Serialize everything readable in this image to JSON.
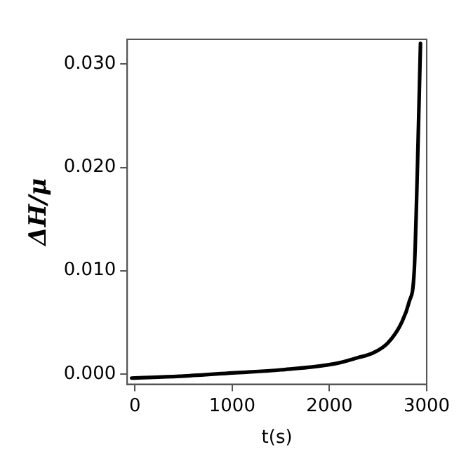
{
  "chart_data": {
    "type": "line",
    "xlabel": "t(s)",
    "ylabel": "ΔH/μ",
    "series": [
      {
        "color": "#000000",
        "x": [
          -35,
          500,
          1000,
          1500,
          2060,
          2300,
          2440,
          2600,
          2743,
          2820,
          2872,
          2905,
          2936
        ],
        "values": [
          -0.0004,
          -0.0002,
          0.0001,
          0.0004,
          0.001,
          0.0016,
          0.002,
          0.003,
          0.005,
          0.007,
          0.01,
          0.02,
          0.032
        ]
      }
    ],
    "xlim": [
      -80,
      3000
    ],
    "xticks": [
      0,
      1000,
      2000,
      3000
    ],
    "ylim": [
      -0.001,
      0.0324
    ],
    "yticks": [
      {
        "value": 0,
        "label": "0.000"
      },
      {
        "value": 0.01,
        "label": "0.010"
      },
      {
        "value": 0.02,
        "label": "0.020"
      },
      {
        "value": 0.03,
        "label": "0.030"
      }
    ],
    "grid": false,
    "legend": false,
    "marker": "none",
    "line_style": "solid"
  }
}
